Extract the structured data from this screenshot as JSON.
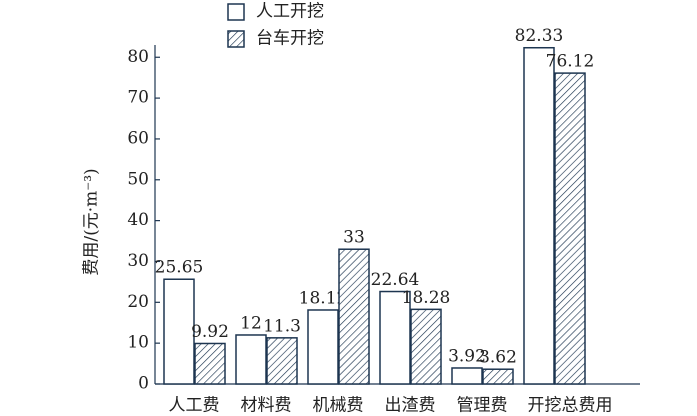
{
  "chart_data": {
    "type": "bar",
    "y_label": "费用/(元·m⁻³)",
    "categories": [
      "人工费",
      "材料费",
      "机械费",
      "出渣费",
      "管理费",
      "开挖总费用"
    ],
    "series": [
      {
        "name": "人工开挖",
        "color": "#1d3550",
        "hatch": false,
        "values": [
          25.65,
          12,
          18.12,
          22.64,
          3.92,
          82.33
        ]
      },
      {
        "name": "台车开挖",
        "color": "#1d3550",
        "hatch": true,
        "values": [
          9.92,
          11.3,
          33,
          18.28,
          3.62,
          76.12
        ]
      }
    ],
    "ylim": [
      0,
      83
    ],
    "yticks": [
      0,
      10,
      20,
      30,
      40,
      50,
      60,
      70,
      80
    ]
  }
}
